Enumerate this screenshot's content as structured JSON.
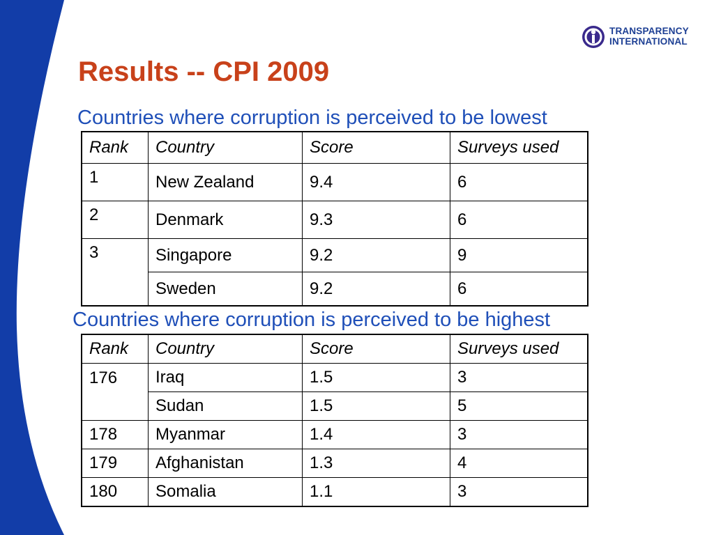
{
  "brand": {
    "line1": "TRANSPARENCY",
    "line2": "INTERNATIONAL",
    "colors": {
      "blue": "#1d3f94",
      "title": "#c8411a",
      "subtitle": "#1f4fb8"
    }
  },
  "title": "Results -- CPI 2009",
  "lowest": {
    "heading": "Countries where corruption is perceived to be lowest",
    "columns": [
      "Rank",
      "Country",
      "Score",
      "Surveys used"
    ],
    "rows": [
      {
        "rank": "1",
        "country": "New Zealand",
        "score": "9.4",
        "surveys": "6"
      },
      {
        "rank": "2",
        "country": "Denmark",
        "score": "9.3",
        "surveys": "6"
      },
      {
        "rank": "3",
        "country": "Singapore",
        "score": "9.2",
        "surveys": "9"
      },
      {
        "rank": "",
        "country": "Sweden",
        "score": "9.2",
        "surveys": "6"
      }
    ]
  },
  "highest": {
    "heading": "Countries where corruption is perceived to be highest",
    "columns": [
      "Rank",
      "Country",
      "Score",
      "Surveys used"
    ],
    "rows": [
      {
        "rank": "176",
        "country": "Iraq",
        "score": "1.5",
        "surveys": "3"
      },
      {
        "rank": "",
        "country": "Sudan",
        "score": "1.5",
        "surveys": "5"
      },
      {
        "rank": "178",
        "country": "Myanmar",
        "score": "1.4",
        "surveys": "3"
      },
      {
        "rank": "179",
        "country": "Afghanistan",
        "score": "1.3",
        "surveys": "4"
      },
      {
        "rank": "180",
        "country": "Somalia",
        "score": "1.1",
        "surveys": "3"
      }
    ]
  }
}
